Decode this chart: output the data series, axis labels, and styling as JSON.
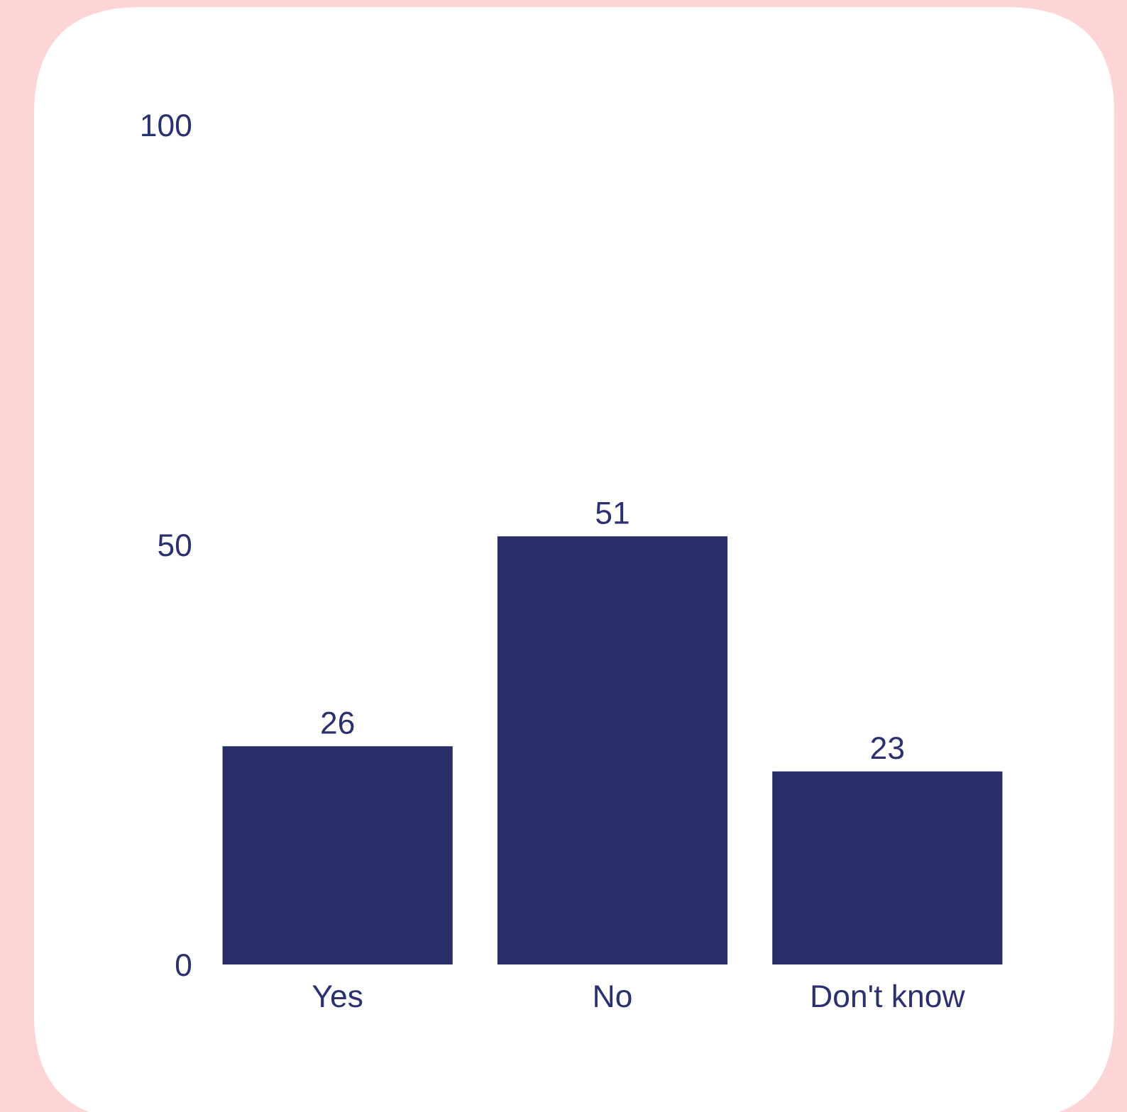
{
  "chart_data": {
    "type": "bar",
    "categories": [
      "Yes",
      "No",
      "Don't know"
    ],
    "values": [
      26,
      51,
      23
    ],
    "color": "#282e67",
    "ylim": [
      0,
      100
    ],
    "yticks": [
      0,
      50,
      100
    ],
    "data_labels": true
  }
}
